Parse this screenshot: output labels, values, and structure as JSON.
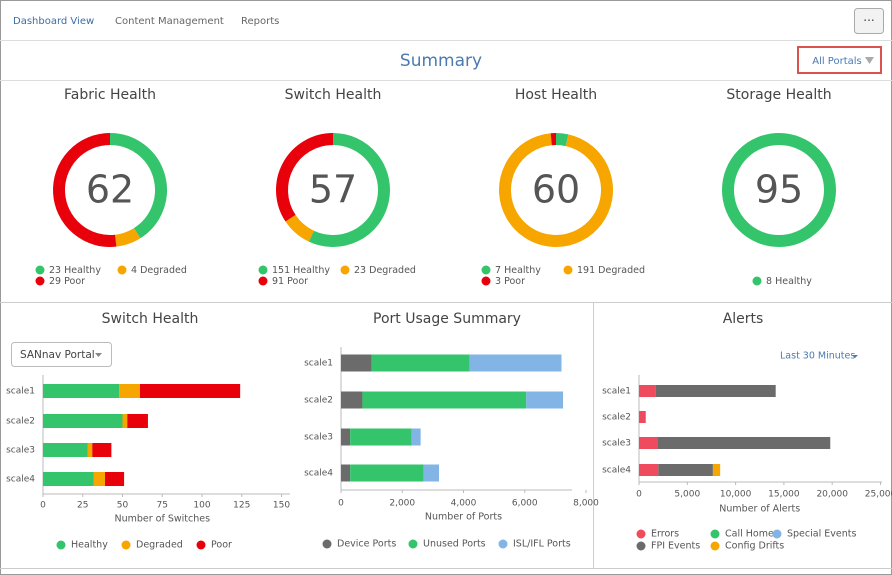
{
  "nav": {
    "tabs": [
      "Dashboard View",
      "Content Management",
      "Reports"
    ],
    "menu": "···"
  },
  "summary": {
    "title": "Summary",
    "portal_filter": "All Portals"
  },
  "chart_data": [
    {
      "type": "donut",
      "title": "Fabric Health",
      "score": 62,
      "categories": [
        "Healthy",
        "Degraded",
        "Poor"
      ],
      "values": [
        23,
        4,
        29
      ],
      "colors": [
        "#34c46b",
        "#f7a600",
        "#e8000b"
      ]
    },
    {
      "type": "donut",
      "title": "Switch Health",
      "score": 57,
      "categories": [
        "Healthy",
        "Degraded",
        "Poor"
      ],
      "values": [
        151,
        23,
        91
      ],
      "colors": [
        "#34c46b",
        "#f7a600",
        "#e8000b"
      ]
    },
    {
      "type": "donut",
      "title": "Host Health",
      "score": 60,
      "categories": [
        "Healthy",
        "Degraded",
        "Poor"
      ],
      "values": [
        7,
        191,
        3
      ],
      "colors": [
        "#34c46b",
        "#f7a600",
        "#e8000b"
      ]
    },
    {
      "type": "donut",
      "title": "Storage Health",
      "score": 95,
      "categories": [
        "Healthy"
      ],
      "values": [
        8
      ],
      "colors": [
        "#34c46b"
      ]
    },
    {
      "type": "hbar-stacked",
      "title": "Switch Health",
      "filter": "SANnav Portal",
      "categories": [
        "scale1",
        "scale2",
        "scale3",
        "scale4"
      ],
      "series": [
        {
          "name": "Healthy",
          "color": "#34c46b",
          "values": [
            48,
            50,
            28,
            32
          ]
        },
        {
          "name": "Degraded",
          "color": "#f7a600",
          "values": [
            13,
            3,
            3,
            7
          ]
        },
        {
          "name": "Poor",
          "color": "#e8000b",
          "values": [
            63,
            13,
            12,
            12
          ]
        }
      ],
      "xlim": [
        0,
        150
      ],
      "xticks": [
        0,
        25,
        50,
        75,
        100,
        125,
        150
      ],
      "xlabel": "Number of Switches"
    },
    {
      "type": "hbar-stacked",
      "title": "Port Usage Summary",
      "categories": [
        "scale1",
        "scale2",
        "scale3",
        "scale4"
      ],
      "series": [
        {
          "name": "Device Ports",
          "color": "#6b6b6b",
          "values": [
            1000,
            700,
            300,
            300
          ]
        },
        {
          "name": "Unused Ports",
          "color": "#34c46b",
          "values": [
            3200,
            5350,
            2000,
            2400
          ]
        },
        {
          "name": "ISL/IFL Ports",
          "color": "#82b4e6",
          "values": [
            3000,
            1200,
            300,
            500
          ]
        }
      ],
      "xlim": [
        0,
        8000
      ],
      "xticks": [
        0,
        {
          "value": 2000,
          "label": "2,000"
        },
        {
          "value": 4000,
          "label": "4,000"
        },
        {
          "value": 6000,
          "label": "6,000"
        },
        {
          "value": 8000,
          "label": "8,000"
        }
      ],
      "xlabel": "Number of Ports"
    },
    {
      "type": "hbar-stacked",
      "title": "Alerts",
      "filter": "Last 30 Minutes",
      "categories": [
        "scale1",
        "scale2",
        "scale3",
        "scale4"
      ],
      "series": [
        {
          "name": "Errors",
          "color": "#f04a5e",
          "values": [
            1750,
            700,
            1900,
            2000
          ]
        },
        {
          "name": "Call Home",
          "color": "#34c46b",
          "values": [
            0,
            0,
            0,
            0
          ]
        },
        {
          "name": "Special Events",
          "color": "#82b4e6",
          "values": [
            0,
            0,
            0,
            0
          ]
        },
        {
          "name": "FPI Events",
          "color": "#6b6b6b",
          "values": [
            12400,
            0,
            17900,
            5650
          ]
        },
        {
          "name": "Config Drifts",
          "color": "#f7a600",
          "values": [
            0,
            0,
            0,
            750
          ]
        }
      ],
      "xlim": [
        0,
        25000
      ],
      "xticks": [
        0,
        {
          "value": 5000,
          "label": "5,000"
        },
        {
          "value": 10000,
          "label": "10,000"
        },
        {
          "value": 15000,
          "label": "15,000"
        },
        {
          "value": 20000,
          "label": "20,000"
        },
        {
          "value": 25000,
          "label": "25,000"
        }
      ],
      "xlabel": "Number of Alerts"
    }
  ]
}
